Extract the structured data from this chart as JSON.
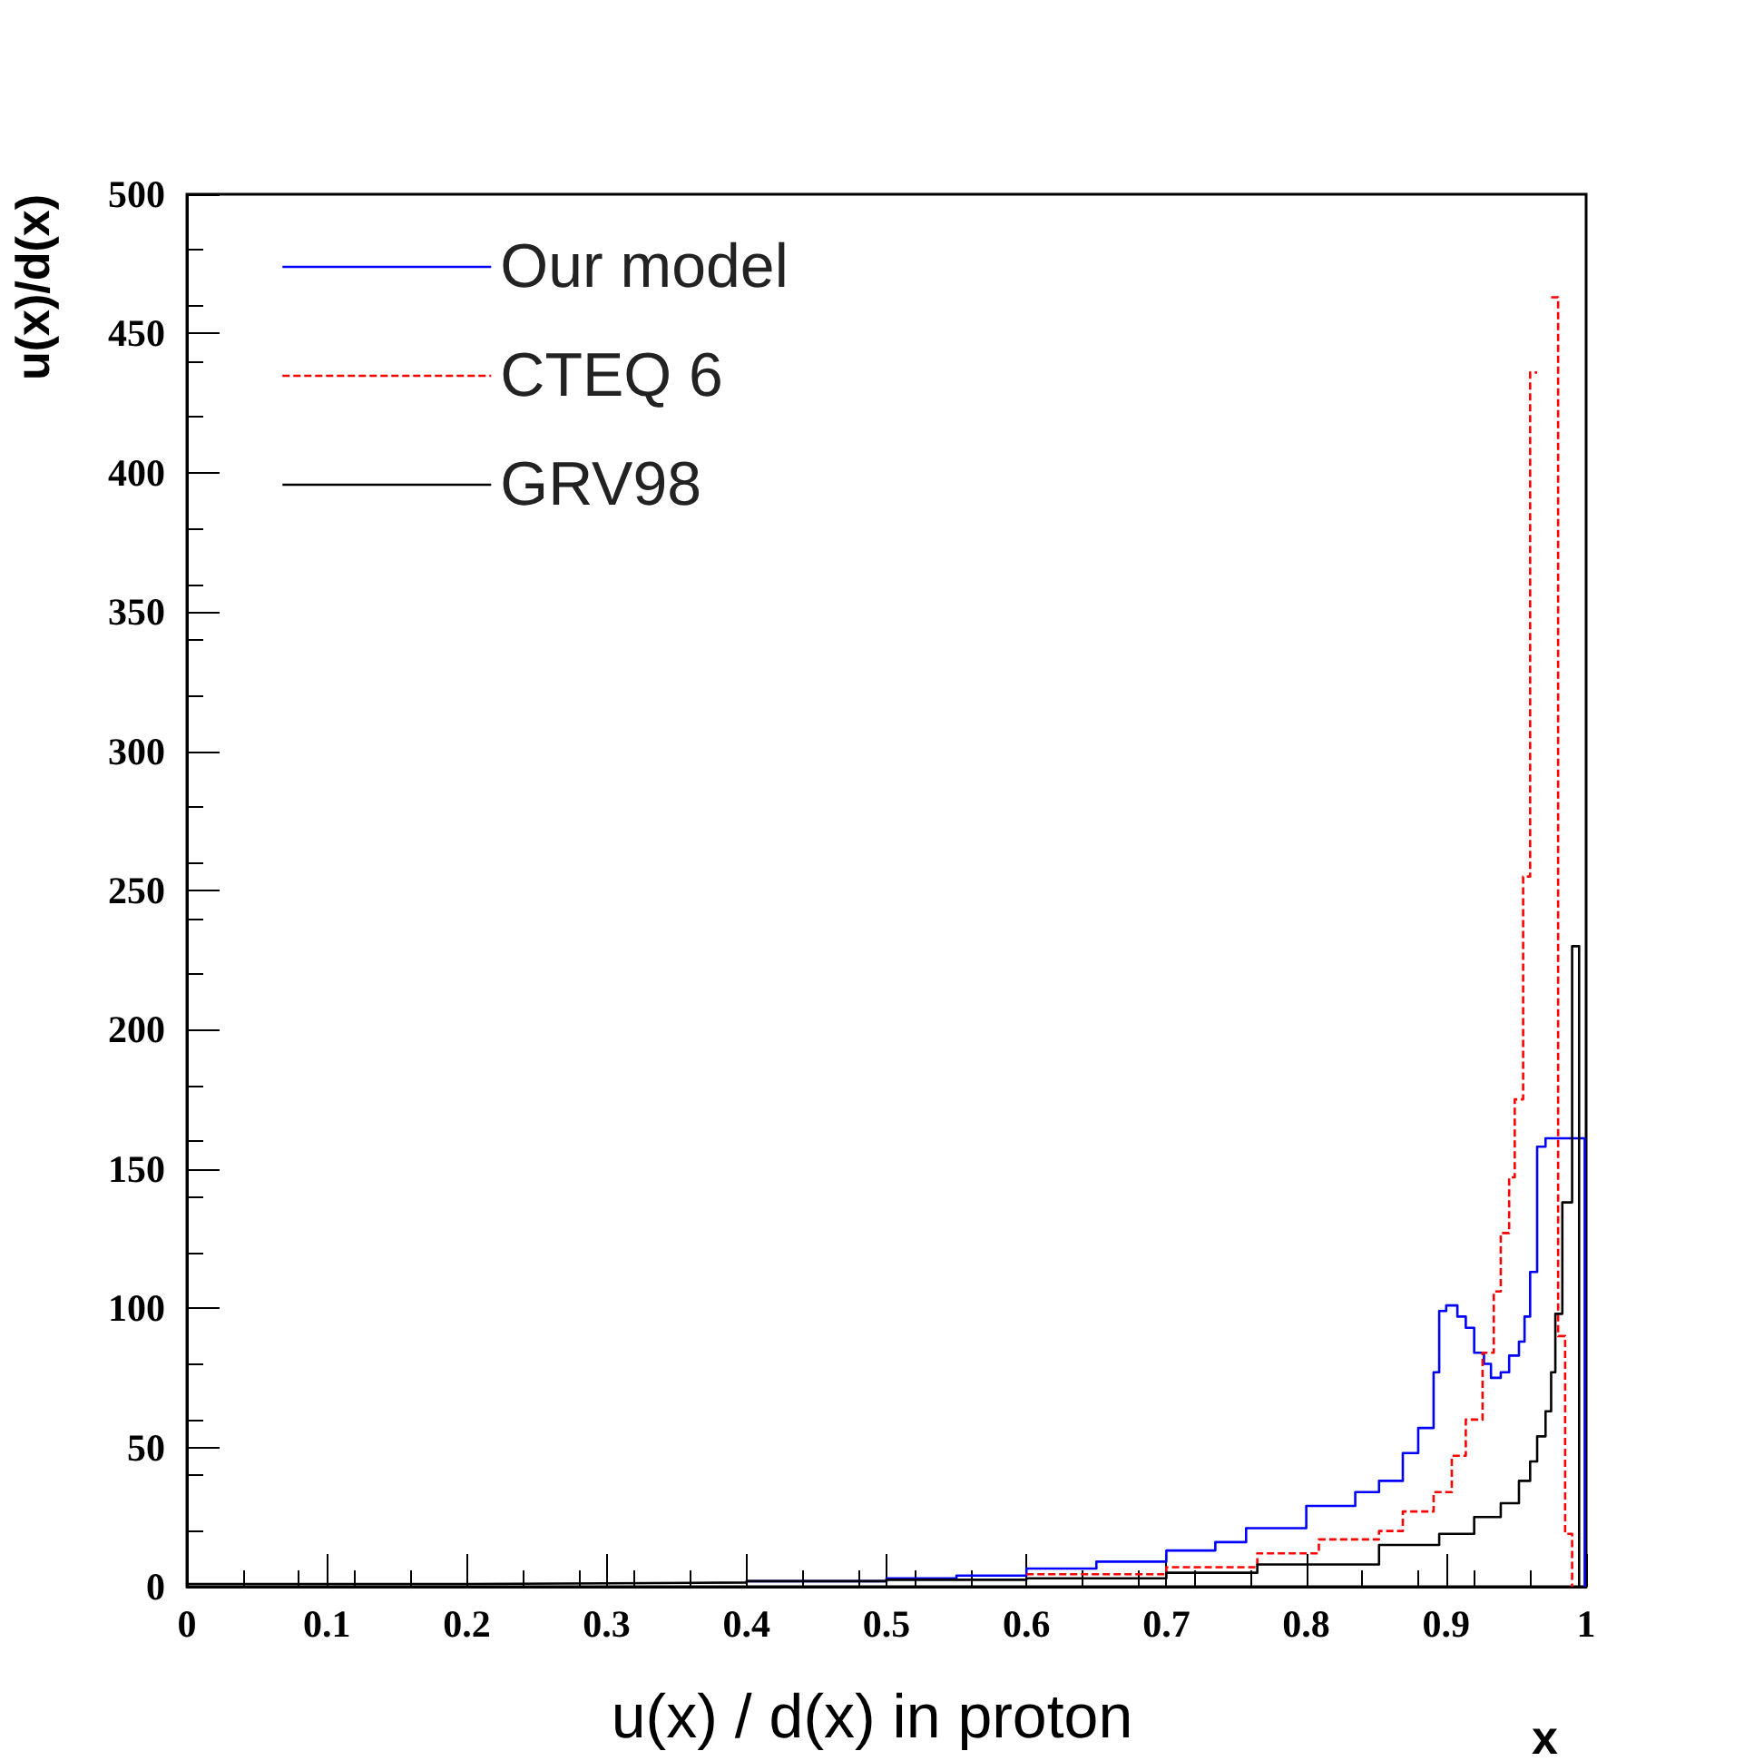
{
  "chart_data": {
    "type": "step",
    "title": "u(x) / d(x) in proton",
    "xlabel": "x",
    "ylabel": "u(x)/d(x)",
    "xlim": [
      0,
      1
    ],
    "xticks": [
      0,
      0.1,
      0.2,
      0.3,
      0.4,
      0.5,
      0.6,
      0.7,
      0.8,
      0.9,
      1
    ],
    "ylim": [
      0,
      500
    ],
    "yticks": [
      0,
      50,
      100,
      150,
      200,
      250,
      300,
      350,
      400,
      450,
      500
    ],
    "grid": false,
    "legend": "top left",
    "series": [
      {
        "name": "Our model",
        "color": "#0000ff",
        "line_style": "solid",
        "x": [
          0.4,
          0.5,
          0.55,
          0.6,
          0.65,
          0.7,
          0.735,
          0.757,
          0.8,
          0.835,
          0.852,
          0.869,
          0.88,
          0.891,
          0.895,
          0.9,
          0.908,
          0.914,
          0.92,
          0.927,
          0.932,
          0.939,
          0.945,
          0.952,
          0.956,
          0.96,
          0.965,
          0.971,
          0.999
        ],
        "values": [
          2,
          3,
          4,
          6.5,
          9,
          13,
          16,
          21,
          29,
          34,
          38,
          48,
          57,
          77,
          99,
          101,
          97,
          93,
          84,
          80,
          75,
          77,
          83,
          88,
          97,
          113,
          158,
          161,
          0
        ]
      },
      {
        "name": "CTEQ 6",
        "color": "#ff0000",
        "line_style": "dashed",
        "x": [
          0.6,
          0.7,
          0.765,
          0.809,
          0.852,
          0.869,
          0.891,
          0.904,
          0.914,
          0.926,
          0.934,
          0.939,
          0.945,
          0.949,
          0.955,
          0.96,
          0.965,
          0.97,
          0.975,
          0.98,
          0.985,
          0.99
        ],
        "values": [
          4.5,
          7,
          12,
          17,
          20,
          27,
          34,
          47,
          60,
          84,
          106,
          127,
          147,
          175,
          255,
          436,
          null,
          null,
          463,
          90,
          19,
          0
        ]
      },
      {
        "name": "GRV98",
        "color": "#000000",
        "line_style": "solid",
        "x": [
          0,
          0.1,
          0.2,
          0.3,
          0.4,
          0.5,
          0.6,
          0.7,
          0.765,
          0.852,
          0.895,
          0.92,
          0.939,
          0.952,
          0.96,
          0.965,
          0.971,
          0.975,
          0.978,
          0.983,
          0.99,
          0.995
        ],
        "values": [
          1,
          1,
          1.2,
          1.5,
          2,
          2.5,
          3,
          5,
          8,
          15,
          19,
          25,
          30,
          38,
          45,
          54,
          63,
          77,
          98,
          138,
          230,
          0
        ]
      }
    ]
  }
}
